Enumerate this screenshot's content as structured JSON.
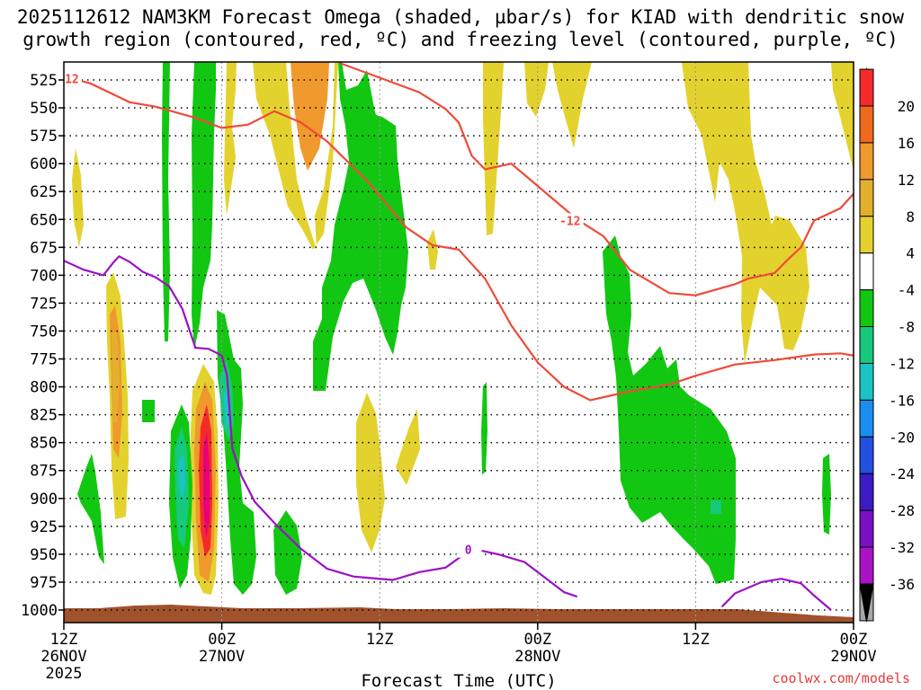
{
  "title_line1": "2025112612 NAM3KM Forecast Omega (shaded, µbar/s) for KIAD with dendritic snow",
  "title_line2": "growth region (contoured, red, ºC) and freezing level (contoured, purple, ºC)",
  "credit": "coolwx.com/models",
  "chart_data": {
    "type": "heatmap",
    "xlabel": "Forecast Time (UTC)",
    "x_ticks": [
      {
        "hour": 0,
        "l1": "12Z",
        "l2": "26NOV",
        "l3": "2025"
      },
      {
        "hour": 12,
        "l1": "00Z",
        "l2": "27NOV",
        "l3": ""
      },
      {
        "hour": 24,
        "l1": "12Z",
        "l2": "",
        "l3": ""
      },
      {
        "hour": 36,
        "l1": "00Z",
        "l2": "28NOV",
        "l3": ""
      },
      {
        "hour": 48,
        "l1": "12Z",
        "l2": "",
        "l3": ""
      },
      {
        "hour": 60,
        "l1": "00Z",
        "l2": "29NOV",
        "l3": ""
      }
    ],
    "y_levels": [
      525,
      550,
      575,
      600,
      625,
      650,
      675,
      700,
      725,
      750,
      775,
      800,
      825,
      850,
      875,
      900,
      925,
      950,
      975,
      1000
    ],
    "y_ticks": [
      "525",
      "550",
      "575",
      "600",
      "625",
      "650",
      "675",
      "700",
      "725",
      "750",
      "775",
      "800",
      "825",
      "850",
      "875",
      "900",
      "925",
      "950",
      "975",
      "1000"
    ],
    "colorbar": {
      "labels": [
        "20",
        "16",
        "12",
        "8",
        "4",
        "-4",
        "-8",
        "-12",
        "-16",
        "-20",
        "-24",
        "-28",
        "-32",
        "-36"
      ],
      "colors": [
        "#e8007a",
        "#f52b2b",
        "#ee6a1c",
        "#f0992c",
        "#e3b02d",
        "#e3d22e",
        "#ffffff",
        "#12c712",
        "#16c97b",
        "#1bc4c4",
        "#1a8ef0",
        "#2250e0",
        "#3a1cc2",
        "#7a10c2",
        "#aa12c6",
        "#a8a8a8",
        "#000000"
      ]
    },
    "series": [
      {
        "name": "-12",
        "color": "#ef4a3a",
        "points": [
          [
            0,
            522
          ],
          [
            2,
            528
          ],
          [
            5,
            545
          ],
          [
            7,
            549
          ],
          [
            10,
            559
          ],
          [
            12,
            568
          ],
          [
            14,
            565
          ],
          [
            16,
            553
          ],
          [
            18,
            563
          ],
          [
            20,
            580
          ],
          [
            23,
            615
          ],
          [
            26,
            657
          ],
          [
            28,
            673
          ],
          [
            30,
            677
          ],
          [
            32,
            703
          ],
          [
            34,
            745
          ],
          [
            36,
            778
          ],
          [
            38,
            800
          ],
          [
            40,
            812
          ],
          [
            43,
            804
          ],
          [
            46,
            798
          ],
          [
            48,
            790
          ],
          [
            51,
            780
          ],
          [
            54,
            776
          ],
          [
            57,
            771
          ],
          [
            59,
            770
          ],
          [
            60,
            772
          ]
        ]
      },
      {
        "name": "-12",
        "color": "#ef4a3a",
        "points": [
          [
            21,
            510
          ],
          [
            24,
            523
          ],
          [
            27,
            536
          ],
          [
            29,
            551
          ],
          [
            30,
            563
          ],
          [
            31,
            593
          ],
          [
            32,
            605
          ],
          [
            34,
            600
          ],
          [
            36,
            620
          ],
          [
            39,
            650
          ],
          [
            41,
            665
          ],
          [
            43,
            695
          ],
          [
            46,
            716
          ],
          [
            48,
            718
          ],
          [
            51,
            708
          ],
          [
            52,
            703
          ],
          [
            54,
            698
          ],
          [
            55,
            686
          ],
          [
            56,
            675
          ],
          [
            57,
            651
          ],
          [
            59,
            640
          ],
          [
            60,
            627
          ]
        ]
      },
      {
        "name": "0",
        "color": "#9c10c6",
        "points": [
          [
            0,
            687
          ],
          [
            1.5,
            695
          ],
          [
            3,
            700
          ],
          [
            3.8,
            688
          ],
          [
            4.2,
            683
          ],
          [
            5,
            688
          ],
          [
            6,
            697
          ],
          [
            7,
            702
          ],
          [
            8,
            710
          ],
          [
            9,
            730
          ],
          [
            10,
            765
          ],
          [
            11,
            766
          ],
          [
            12,
            772
          ],
          [
            12.4,
            790
          ],
          [
            12.8,
            855
          ],
          [
            13.5,
            880
          ],
          [
            14.5,
            903
          ],
          [
            16,
            922
          ],
          [
            18,
            945
          ],
          [
            20,
            963
          ],
          [
            22,
            970
          ],
          [
            23,
            971
          ],
          [
            25,
            973
          ],
          [
            27,
            966
          ],
          [
            29,
            962
          ],
          [
            31,
            945
          ],
          [
            33,
            950
          ],
          [
            35,
            957
          ],
          [
            37,
            975
          ],
          [
            38,
            984
          ],
          [
            39,
            988
          ]
        ]
      },
      {
        "name": "0",
        "color": "#9c10c6",
        "points": [
          [
            50,
            997
          ],
          [
            51,
            985
          ],
          [
            53,
            975
          ],
          [
            54.5,
            972
          ],
          [
            56,
            976
          ],
          [
            57,
            987
          ],
          [
            58.3,
            1000
          ]
        ]
      }
    ]
  }
}
